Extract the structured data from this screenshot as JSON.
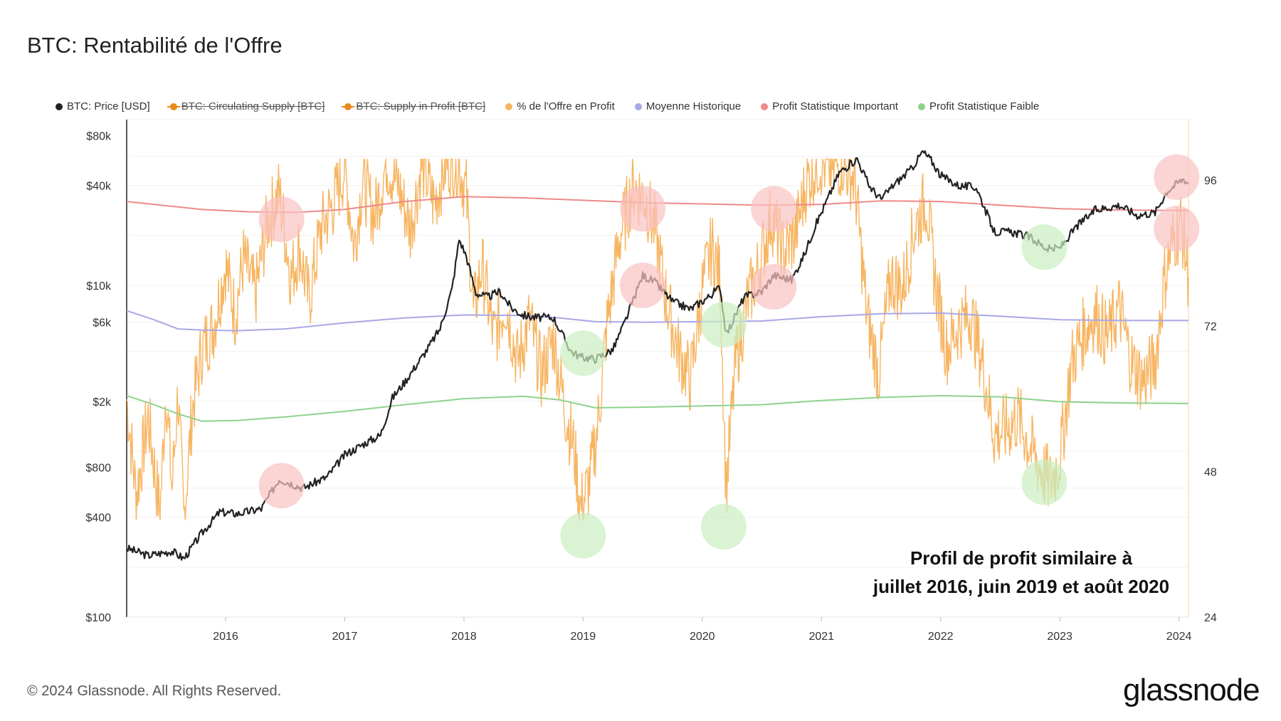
{
  "chart_data": {
    "type": "line",
    "title": "BTC: Rentabilité de l'Offre",
    "legend": [
      {
        "label": "BTC: Price [USD]",
        "color": "#222222",
        "struck": false
      },
      {
        "label": "BTC: Circulating Supply [BTC]",
        "color": "#e8891c",
        "struck": true
      },
      {
        "label": "BTC: Supply in Profit [BTC]",
        "color": "#e8891c",
        "struck": true
      },
      {
        "label": "% de l'Offre en Profit",
        "color": "#f7b562",
        "struck": false
      },
      {
        "label": "Moyenne Historique",
        "color": "#a9a8e6",
        "struck": false
      },
      {
        "label": "Profit Statistique Important",
        "color": "#ee8a8a",
        "struck": false
      },
      {
        "label": "Profit Statistique Faible",
        "color": "#90d28c",
        "struck": false
      }
    ],
    "x_ticks": [
      "2016",
      "2017",
      "2018",
      "2019",
      "2020",
      "2021",
      "2022",
      "2023",
      "2024"
    ],
    "x_range": [
      2015.17,
      2024.08
    ],
    "y_left": {
      "scale": "log",
      "range": [
        100,
        100000
      ],
      "ticks": [
        {
          "label": "$80k",
          "value": 80000
        },
        {
          "label": "$40k",
          "value": 40000
        },
        {
          "label": "$10k",
          "value": 10000
        },
        {
          "label": "$6k",
          "value": 6000
        },
        {
          "label": "$2k",
          "value": 2000
        },
        {
          "label": "$800",
          "value": 800
        },
        {
          "label": "$400",
          "value": 400
        },
        {
          "label": "$100",
          "value": 100
        }
      ]
    },
    "y_right": {
      "scale": "linear",
      "range": [
        24,
        106
      ],
      "ticks": [
        {
          "label": "96",
          "value": 96
        },
        {
          "label": "72",
          "value": 72
        },
        {
          "label": "48",
          "value": 48
        },
        {
          "label": "24",
          "value": 24
        }
      ]
    },
    "price_usd": [
      [
        2015.17,
        260
      ],
      [
        2015.35,
        235
      ],
      [
        2015.55,
        250
      ],
      [
        2015.65,
        225
      ],
      [
        2015.8,
        320
      ],
      [
        2015.95,
        430
      ],
      [
        2016.1,
        420
      ],
      [
        2016.3,
        450
      ],
      [
        2016.45,
        680
      ],
      [
        2016.55,
        640
      ],
      [
        2016.65,
        600
      ],
      [
        2016.85,
        700
      ],
      [
        2017.0,
        950
      ],
      [
        2017.15,
        1100
      ],
      [
        2017.3,
        1250
      ],
      [
        2017.4,
        2100
      ],
      [
        2017.5,
        2600
      ],
      [
        2017.6,
        3300
      ],
      [
        2017.7,
        4200
      ],
      [
        2017.8,
        5500
      ],
      [
        2017.9,
        9500
      ],
      [
        2017.96,
        19000
      ],
      [
        2018.02,
        15000
      ],
      [
        2018.1,
        9000
      ],
      [
        2018.2,
        8500
      ],
      [
        2018.3,
        9200
      ],
      [
        2018.4,
        7300
      ],
      [
        2018.5,
        6600
      ],
      [
        2018.6,
        6400
      ],
      [
        2018.75,
        6400
      ],
      [
        2018.9,
        4000
      ],
      [
        2018.98,
        3700
      ],
      [
        2019.1,
        3600
      ],
      [
        2019.25,
        4100
      ],
      [
        2019.35,
        6000
      ],
      [
        2019.5,
        11500
      ],
      [
        2019.6,
        10500
      ],
      [
        2019.75,
        8000
      ],
      [
        2019.9,
        7200
      ],
      [
        2020.05,
        8500
      ],
      [
        2020.15,
        9800
      ],
      [
        2020.2,
        5000
      ],
      [
        2020.35,
        8500
      ],
      [
        2020.5,
        9200
      ],
      [
        2020.6,
        11500
      ],
      [
        2020.75,
        10800
      ],
      [
        2020.85,
        15000
      ],
      [
        2020.95,
        23000
      ],
      [
        2021.05,
        33000
      ],
      [
        2021.15,
        48000
      ],
      [
        2021.3,
        58000
      ],
      [
        2021.4,
        40000
      ],
      [
        2021.5,
        33000
      ],
      [
        2021.6,
        40000
      ],
      [
        2021.75,
        50000
      ],
      [
        2021.85,
        64000
      ],
      [
        2021.92,
        57000
      ],
      [
        2022.0,
        46000
      ],
      [
        2022.15,
        40000
      ],
      [
        2022.3,
        39000
      ],
      [
        2022.45,
        21000
      ],
      [
        2022.6,
        21000
      ],
      [
        2022.75,
        19500
      ],
      [
        2022.9,
        16500
      ],
      [
        2023.0,
        16800
      ],
      [
        2023.15,
        23000
      ],
      [
        2023.3,
        28500
      ],
      [
        2023.5,
        30500
      ],
      [
        2023.65,
        26500
      ],
      [
        2023.8,
        27500
      ],
      [
        2023.9,
        37000
      ],
      [
        2024.0,
        42000
      ],
      [
        2024.04,
        44000
      ],
      [
        2024.08,
        41000
      ]
    ],
    "supply_in_profit_pct": [
      [
        2015.17,
        60
      ],
      [
        2015.25,
        44
      ],
      [
        2015.35,
        57
      ],
      [
        2015.45,
        41
      ],
      [
        2015.5,
        62
      ],
      [
        2015.55,
        45
      ],
      [
        2015.6,
        61
      ],
      [
        2015.65,
        40
      ],
      [
        2015.72,
        58
      ],
      [
        2015.8,
        68
      ],
      [
        2015.9,
        72
      ],
      [
        2016.0,
        82
      ],
      [
        2016.08,
        74
      ],
      [
        2016.15,
        83
      ],
      [
        2016.25,
        77
      ],
      [
        2016.35,
        89
      ],
      [
        2016.45,
        94
      ],
      [
        2016.55,
        80
      ],
      [
        2016.62,
        85
      ],
      [
        2016.7,
        76
      ],
      [
        2016.8,
        88
      ],
      [
        2016.9,
        92
      ],
      [
        2017.0,
        98
      ],
      [
        2017.08,
        85
      ],
      [
        2017.15,
        96
      ],
      [
        2017.25,
        90
      ],
      [
        2017.35,
        99
      ],
      [
        2017.45,
        95
      ],
      [
        2017.55,
        88
      ],
      [
        2017.65,
        99
      ],
      [
        2017.75,
        92
      ],
      [
        2017.85,
        99
      ],
      [
        2017.95,
        99
      ],
      [
        2018.02,
        94
      ],
      [
        2018.08,
        74
      ],
      [
        2018.15,
        82
      ],
      [
        2018.25,
        70
      ],
      [
        2018.35,
        76
      ],
      [
        2018.45,
        66
      ],
      [
        2018.55,
        73
      ],
      [
        2018.65,
        64
      ],
      [
        2018.75,
        70
      ],
      [
        2018.85,
        58
      ],
      [
        2018.92,
        52
      ],
      [
        2018.98,
        42
      ],
      [
        2019.05,
        46
      ],
      [
        2019.12,
        55
      ],
      [
        2019.2,
        72
      ],
      [
        2019.3,
        86
      ],
      [
        2019.42,
        95
      ],
      [
        2019.52,
        93
      ],
      [
        2019.6,
        88
      ],
      [
        2019.7,
        76
      ],
      [
        2019.8,
        68
      ],
      [
        2019.9,
        63
      ],
      [
        2020.0,
        78
      ],
      [
        2020.08,
        85
      ],
      [
        2020.15,
        80
      ],
      [
        2020.2,
        45
      ],
      [
        2020.28,
        66
      ],
      [
        2020.38,
        76
      ],
      [
        2020.48,
        82
      ],
      [
        2020.58,
        90
      ],
      [
        2020.68,
        84
      ],
      [
        2020.78,
        87
      ],
      [
        2020.88,
        96
      ],
      [
        2020.98,
        99
      ],
      [
        2021.08,
        98
      ],
      [
        2021.18,
        99
      ],
      [
        2021.28,
        96
      ],
      [
        2021.38,
        74
      ],
      [
        2021.48,
        64
      ],
      [
        2021.58,
        80
      ],
      [
        2021.68,
        78
      ],
      [
        2021.78,
        88
      ],
      [
        2021.88,
        93
      ],
      [
        2021.95,
        80
      ],
      [
        2022.05,
        68
      ],
      [
        2022.15,
        72
      ],
      [
        2022.25,
        74
      ],
      [
        2022.35,
        66
      ],
      [
        2022.45,
        54
      ],
      [
        2022.55,
        55
      ],
      [
        2022.65,
        57
      ],
      [
        2022.75,
        52
      ],
      [
        2022.85,
        48
      ],
      [
        2022.92,
        46
      ],
      [
        2023.0,
        50
      ],
      [
        2023.1,
        66
      ],
      [
        2023.2,
        71
      ],
      [
        2023.3,
        74
      ],
      [
        2023.4,
        70
      ],
      [
        2023.5,
        75
      ],
      [
        2023.6,
        66
      ],
      [
        2023.7,
        63
      ],
      [
        2023.8,
        66
      ],
      [
        2023.88,
        80
      ],
      [
        2023.95,
        86
      ],
      [
        2024.02,
        89
      ],
      [
        2024.08,
        80
      ]
    ],
    "historical_mean_pct": [
      [
        2015.17,
        74.5
      ],
      [
        2015.4,
        73.0
      ],
      [
        2015.6,
        71.5
      ],
      [
        2015.8,
        71.3
      ],
      [
        2016.1,
        71.2
      ],
      [
        2016.5,
        71.5
      ],
      [
        2017.0,
        72.5
      ],
      [
        2017.5,
        73.3
      ],
      [
        2018.0,
        73.8
      ],
      [
        2018.5,
        73.7
      ],
      [
        2018.8,
        73.3
      ],
      [
        2019.1,
        72.7
      ],
      [
        2019.5,
        72.6
      ],
      [
        2020.0,
        72.7
      ],
      [
        2020.5,
        72.8
      ],
      [
        2021.0,
        73.5
      ],
      [
        2021.5,
        74.0
      ],
      [
        2022.0,
        74.1
      ],
      [
        2022.5,
        73.6
      ],
      [
        2023.0,
        73.0
      ],
      [
        2023.5,
        72.9
      ],
      [
        2024.08,
        72.9
      ]
    ],
    "important_profit_pct": [
      [
        2015.17,
        92.5
      ],
      [
        2015.5,
        91.8
      ],
      [
        2015.8,
        91.2
      ],
      [
        2016.2,
        90.8
      ],
      [
        2016.6,
        90.7
      ],
      [
        2017.0,
        91.2
      ],
      [
        2017.5,
        92.5
      ],
      [
        2018.0,
        93.3
      ],
      [
        2018.5,
        93.1
      ],
      [
        2019.0,
        92.7
      ],
      [
        2019.5,
        92.3
      ],
      [
        2020.0,
        92.1
      ],
      [
        2020.5,
        91.9
      ],
      [
        2021.0,
        92.0
      ],
      [
        2021.5,
        92.6
      ],
      [
        2022.0,
        92.5
      ],
      [
        2022.5,
        91.9
      ],
      [
        2023.0,
        91.3
      ],
      [
        2023.5,
        91.1
      ],
      [
        2024.08,
        91.0
      ]
    ],
    "weak_profit_pct": [
      [
        2015.17,
        60.5
      ],
      [
        2015.4,
        59.0
      ],
      [
        2015.6,
        57.5
      ],
      [
        2015.8,
        56.3
      ],
      [
        2016.1,
        56.4
      ],
      [
        2016.5,
        57.0
      ],
      [
        2017.0,
        57.9
      ],
      [
        2017.5,
        59.0
      ],
      [
        2018.0,
        60.0
      ],
      [
        2018.5,
        60.4
      ],
      [
        2018.8,
        59.8
      ],
      [
        2019.1,
        58.5
      ],
      [
        2019.5,
        58.6
      ],
      [
        2020.0,
        58.8
      ],
      [
        2020.5,
        59.0
      ],
      [
        2021.0,
        59.7
      ],
      [
        2021.5,
        60.2
      ],
      [
        2022.0,
        60.5
      ],
      [
        2022.5,
        60.3
      ],
      [
        2023.0,
        59.5
      ],
      [
        2023.5,
        59.3
      ],
      [
        2024.08,
        59.2
      ]
    ],
    "highlight_circles": [
      {
        "x": 2016.47,
        "price": 25000,
        "kind": "important"
      },
      {
        "x": 2016.47,
        "price": 620,
        "kind": "important"
      },
      {
        "x": 2019.5,
        "price": 29000,
        "kind": "important"
      },
      {
        "x": 2019.5,
        "price": 10000,
        "kind": "important"
      },
      {
        "x": 2020.6,
        "price": 29000,
        "kind": "important"
      },
      {
        "x": 2020.6,
        "price": 9800,
        "kind": "important"
      },
      {
        "x": 2023.98,
        "price": 45000,
        "kind": "important"
      },
      {
        "x": 2023.98,
        "price": 22000,
        "kind": "important"
      },
      {
        "x": 2019.0,
        "price": 3900,
        "kind": "weak"
      },
      {
        "x": 2019.0,
        "price": 310,
        "kind": "weak"
      },
      {
        "x": 2020.18,
        "price": 5800,
        "kind": "weak"
      },
      {
        "x": 2020.18,
        "price": 350,
        "kind": "weak"
      },
      {
        "x": 2022.87,
        "price": 17000,
        "kind": "weak"
      },
      {
        "x": 2022.87,
        "price": 650,
        "kind": "weak"
      }
    ],
    "annotation": [
      "Profil de profit similaire à",
      "juillet 2016, juin 2019 et août 2020"
    ]
  },
  "footer": {
    "copyright": "© 2024 Glassnode. All Rights Reserved.",
    "brand": "glassnode"
  },
  "colors": {
    "price": "#222222",
    "pct": "#f7b562",
    "mean": "#a9a8e6",
    "important": "#ee8a8a",
    "weak": "#90d28c",
    "important_circle": "#f9c2c2",
    "weak_circle": "#c9eec0"
  }
}
